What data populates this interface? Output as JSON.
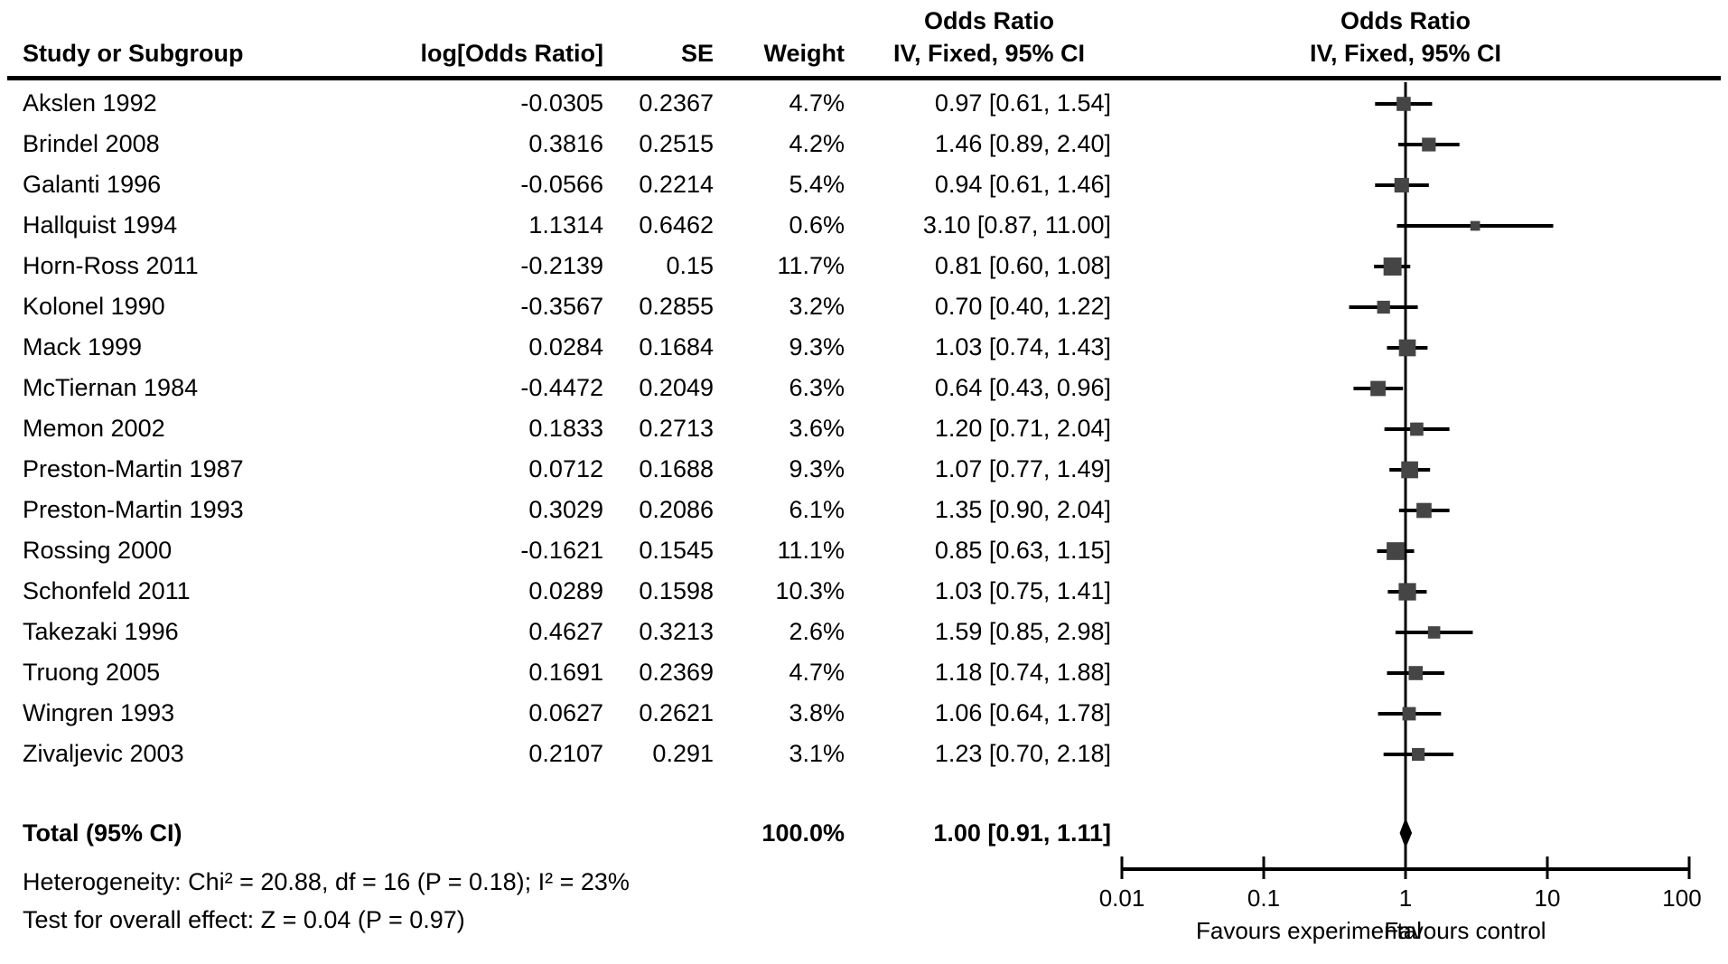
{
  "chart_data": {
    "type": "forest",
    "effect_label": "Odds Ratio",
    "method_label": "IV, Fixed, 95% CI",
    "columns": [
      "Study or Subgroup",
      "log[Odds Ratio]",
      "SE",
      "Weight",
      "IV, Fixed, 95% CI"
    ],
    "studies": [
      {
        "name": "Akslen 1992",
        "log_or": "-0.0305",
        "se": "0.2367",
        "weight": "4.7%",
        "weight_pct": 4.7,
        "ci_text": "0.97 [0.61, 1.54]",
        "or": 0.97,
        "lo": 0.61,
        "hi": 1.54
      },
      {
        "name": "Brindel 2008",
        "log_or": "0.3816",
        "se": "0.2515",
        "weight": "4.2%",
        "weight_pct": 4.2,
        "ci_text": "1.46 [0.89, 2.40]",
        "or": 1.46,
        "lo": 0.89,
        "hi": 2.4
      },
      {
        "name": "Galanti 1996",
        "log_or": "-0.0566",
        "se": "0.2214",
        "weight": "5.4%",
        "weight_pct": 5.4,
        "ci_text": "0.94 [0.61, 1.46]",
        "or": 0.94,
        "lo": 0.61,
        "hi": 1.46
      },
      {
        "name": "Hallquist 1994",
        "log_or": "1.1314",
        "se": "0.6462",
        "weight": "0.6%",
        "weight_pct": 0.6,
        "ci_text": "3.10 [0.87, 11.00]",
        "or": 3.1,
        "lo": 0.87,
        "hi": 11.0
      },
      {
        "name": "Horn-Ross 2011",
        "log_or": "-0.2139",
        "se": "0.15",
        "weight": "11.7%",
        "weight_pct": 11.7,
        "ci_text": "0.81 [0.60, 1.08]",
        "or": 0.81,
        "lo": 0.6,
        "hi": 1.08
      },
      {
        "name": "Kolonel 1990",
        "log_or": "-0.3567",
        "se": "0.2855",
        "weight": "3.2%",
        "weight_pct": 3.2,
        "ci_text": "0.70 [0.40, 1.22]",
        "or": 0.7,
        "lo": 0.4,
        "hi": 1.22
      },
      {
        "name": "Mack 1999",
        "log_or": "0.0284",
        "se": "0.1684",
        "weight": "9.3%",
        "weight_pct": 9.3,
        "ci_text": "1.03 [0.74, 1.43]",
        "or": 1.03,
        "lo": 0.74,
        "hi": 1.43
      },
      {
        "name": "McTiernan 1984",
        "log_or": "-0.4472",
        "se": "0.2049",
        "weight": "6.3%",
        "weight_pct": 6.3,
        "ci_text": "0.64 [0.43, 0.96]",
        "or": 0.64,
        "lo": 0.43,
        "hi": 0.96
      },
      {
        "name": "Memon 2002",
        "log_or": "0.1833",
        "se": "0.2713",
        "weight": "3.6%",
        "weight_pct": 3.6,
        "ci_text": "1.20 [0.71, 2.04]",
        "or": 1.2,
        "lo": 0.71,
        "hi": 2.04
      },
      {
        "name": "Preston-Martin 1987",
        "log_or": "0.0712",
        "se": "0.1688",
        "weight": "9.3%",
        "weight_pct": 9.3,
        "ci_text": "1.07 [0.77, 1.49]",
        "or": 1.07,
        "lo": 0.77,
        "hi": 1.49
      },
      {
        "name": "Preston-Martin 1993",
        "log_or": "0.3029",
        "se": "0.2086",
        "weight": "6.1%",
        "weight_pct": 6.1,
        "ci_text": "1.35 [0.90, 2.04]",
        "or": 1.35,
        "lo": 0.9,
        "hi": 2.04
      },
      {
        "name": "Rossing 2000",
        "log_or": "-0.1621",
        "se": "0.1545",
        "weight": "11.1%",
        "weight_pct": 11.1,
        "ci_text": "0.85 [0.63, 1.15]",
        "or": 0.85,
        "lo": 0.63,
        "hi": 1.15
      },
      {
        "name": "Schonfeld 2011",
        "log_or": "0.0289",
        "se": "0.1598",
        "weight": "10.3%",
        "weight_pct": 10.3,
        "ci_text": "1.03 [0.75, 1.41]",
        "or": 1.03,
        "lo": 0.75,
        "hi": 1.41
      },
      {
        "name": "Takezaki 1996",
        "log_or": "0.4627",
        "se": "0.3213",
        "weight": "2.6%",
        "weight_pct": 2.6,
        "ci_text": "1.59 [0.85, 2.98]",
        "or": 1.59,
        "lo": 0.85,
        "hi": 2.98
      },
      {
        "name": "Truong 2005",
        "log_or": "0.1691",
        "se": "0.2369",
        "weight": "4.7%",
        "weight_pct": 4.7,
        "ci_text": "1.18 [0.74, 1.88]",
        "or": 1.18,
        "lo": 0.74,
        "hi": 1.88
      },
      {
        "name": "Wingren 1993",
        "log_or": "0.0627",
        "se": "0.2621",
        "weight": "3.8%",
        "weight_pct": 3.8,
        "ci_text": "1.06 [0.64, 1.78]",
        "or": 1.06,
        "lo": 0.64,
        "hi": 1.78
      },
      {
        "name": "Zivaljevic 2003",
        "log_or": "0.2107",
        "se": "0.291",
        "weight": "3.1%",
        "weight_pct": 3.1,
        "ci_text": "1.23 [0.70, 2.18]",
        "or": 1.23,
        "lo": 0.7,
        "hi": 2.18
      }
    ],
    "total": {
      "label": "Total (95% CI)",
      "weight": "100.0%",
      "ci_text": "1.00 [0.91, 1.11]",
      "or": 1.0,
      "lo": 0.91,
      "hi": 1.11
    },
    "heterogeneity": "Heterogeneity: Chi² = 20.88, df = 16 (P = 0.18); I² = 23%",
    "overall_effect": "Test for overall effect: Z = 0.04 (P = 0.97)",
    "axis": {
      "scale": "log",
      "ticks": [
        0.01,
        0.1,
        1,
        10,
        100
      ],
      "tick_labels": [
        "0.01",
        "0.1",
        "1",
        "10",
        "100"
      ]
    },
    "favours_left": "Favours experimental",
    "favours_right": "Favours control",
    "colors": {
      "marker": "#454545",
      "line": "#000000",
      "diamond": "#000000"
    }
  }
}
